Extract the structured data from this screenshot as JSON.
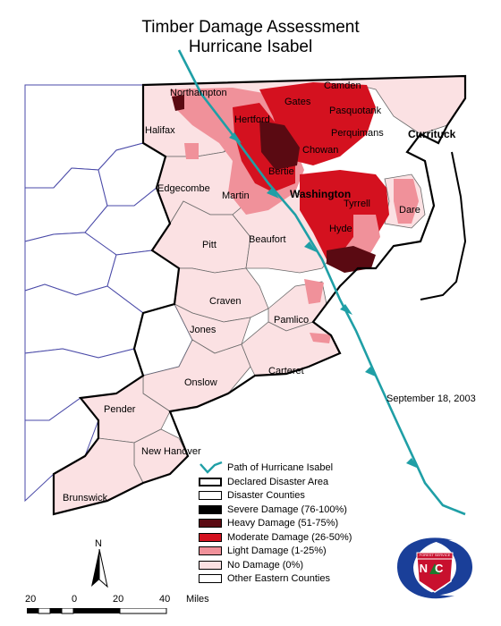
{
  "title_line1": "Timber Damage Assessment",
  "title_line2": "Hurricane Isabel",
  "counties": [
    {
      "name": "Northampton",
      "big": false
    },
    {
      "name": "Halifax",
      "big": false
    },
    {
      "name": "Hertford",
      "big": false
    },
    {
      "name": "Gates",
      "big": false
    },
    {
      "name": "Camden",
      "big": false
    },
    {
      "name": "Pasquotank",
      "big": false
    },
    {
      "name": "Perquimans",
      "big": false
    },
    {
      "name": "Chowan",
      "big": false
    },
    {
      "name": "Currituck",
      "big": true
    },
    {
      "name": "Bertie",
      "big": false
    },
    {
      "name": "Edgecombe",
      "big": false
    },
    {
      "name": "Martin",
      "big": false
    },
    {
      "name": "Washington",
      "big": true
    },
    {
      "name": "Tyrrell",
      "big": false
    },
    {
      "name": "Dare",
      "big": false
    },
    {
      "name": "Pitt",
      "big": false
    },
    {
      "name": "Beaufort",
      "big": false
    },
    {
      "name": "Hyde",
      "big": false
    },
    {
      "name": "Craven",
      "big": false
    },
    {
      "name": "Pamlico",
      "big": false
    },
    {
      "name": "Jones",
      "big": false
    },
    {
      "name": "Onslow",
      "big": false
    },
    {
      "name": "Carteret",
      "big": false
    },
    {
      "name": "Pender",
      "big": false
    },
    {
      "name": "New Hanover",
      "big": false
    },
    {
      "name": "Brunswick",
      "big": false
    }
  ],
  "track_date": "September 18, 2003",
  "legend": [
    {
      "label": "Path of Hurricane Isabel",
      "kind": "path",
      "color": "#1f9fa6"
    },
    {
      "label": "Declared Disaster Area",
      "kind": "box",
      "color": "#ffffff"
    },
    {
      "label": "Disaster Counties",
      "kind": "box",
      "color": "#ffffff"
    },
    {
      "label": "Severe Damage (76-100%)",
      "kind": "box",
      "color": "#000000"
    },
    {
      "label": "Heavy Damage (51-75%)",
      "kind": "box",
      "color": "#5a0a12"
    },
    {
      "label": "Moderate Damage (26-50%)",
      "kind": "box",
      "color": "#d4111f"
    },
    {
      "label": "Light Damage (1-25%)",
      "kind": "box",
      "color": "#f0919a"
    },
    {
      "label": "No Damage (0%)",
      "kind": "box",
      "color": "#fbe1e3"
    },
    {
      "label": "Other Eastern Counties",
      "kind": "box",
      "color": "#ffffff"
    }
  ],
  "north_label": "N",
  "scale": {
    "ticks": [
      "20",
      "0",
      "20",
      "40"
    ],
    "unit": "Miles"
  },
  "logo_text": {
    "top": "FOREST SERVICE",
    "letters": "NC"
  }
}
